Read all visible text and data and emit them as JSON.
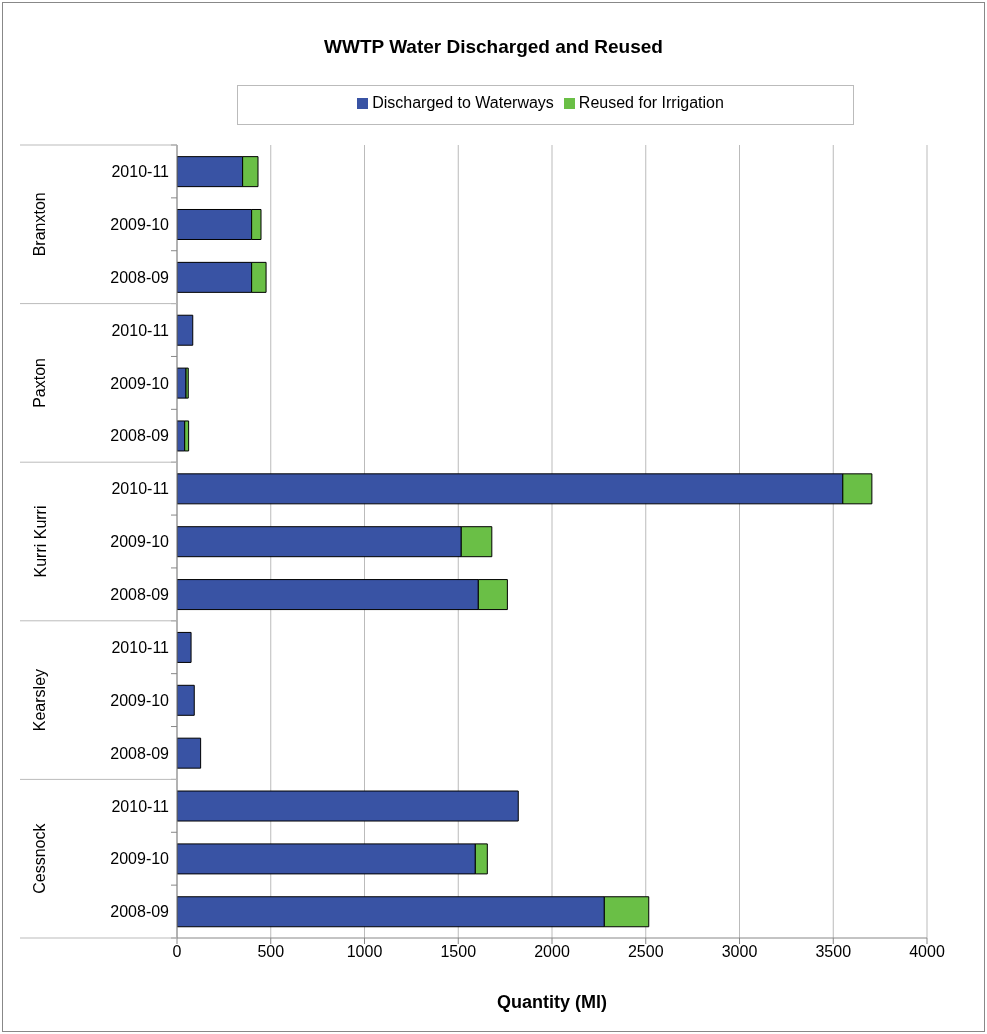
{
  "chart_data": {
    "type": "bar",
    "orientation": "horizontal",
    "stacked": true,
    "title": "WWTP Water Discharged and Reused",
    "xlabel": "Quantity (Ml)",
    "categories": [
      "2010-11",
      "2009-10",
      "2008-09",
      "2010-11",
      "2009-10",
      "2008-09",
      "2010-11",
      "2009-10",
      "2008-09",
      "2010-11",
      "2009-10",
      "2008-09",
      "2010-11",
      "2009-10",
      "2008-09"
    ],
    "annotations": [
      "Branxton",
      "Paxton",
      "Kurri Kurri",
      "Kearsley",
      "Cessnock"
    ],
    "series": [
      {
        "name": "Discharged to Waterways",
        "color": "#3953a4",
        "values": [
          350,
          398,
          398,
          84,
          48,
          41,
          3551,
          1516,
          1607,
          75,
          92,
          126,
          1820,
          1591,
          2279
        ]
      },
      {
        "name": "Reused for Irrigation",
        "color": "#6abf46",
        "values": [
          82,
          50,
          77,
          0,
          12,
          21,
          155,
          163,
          155,
          0,
          0,
          0,
          0,
          64,
          237
        ]
      }
    ],
    "xlim": [
      0,
      4000
    ],
    "xticks": [
      0,
      500,
      1000,
      1500,
      2000,
      2500,
      3000,
      3500,
      4000
    ],
    "grid": "x",
    "legend": "top"
  }
}
